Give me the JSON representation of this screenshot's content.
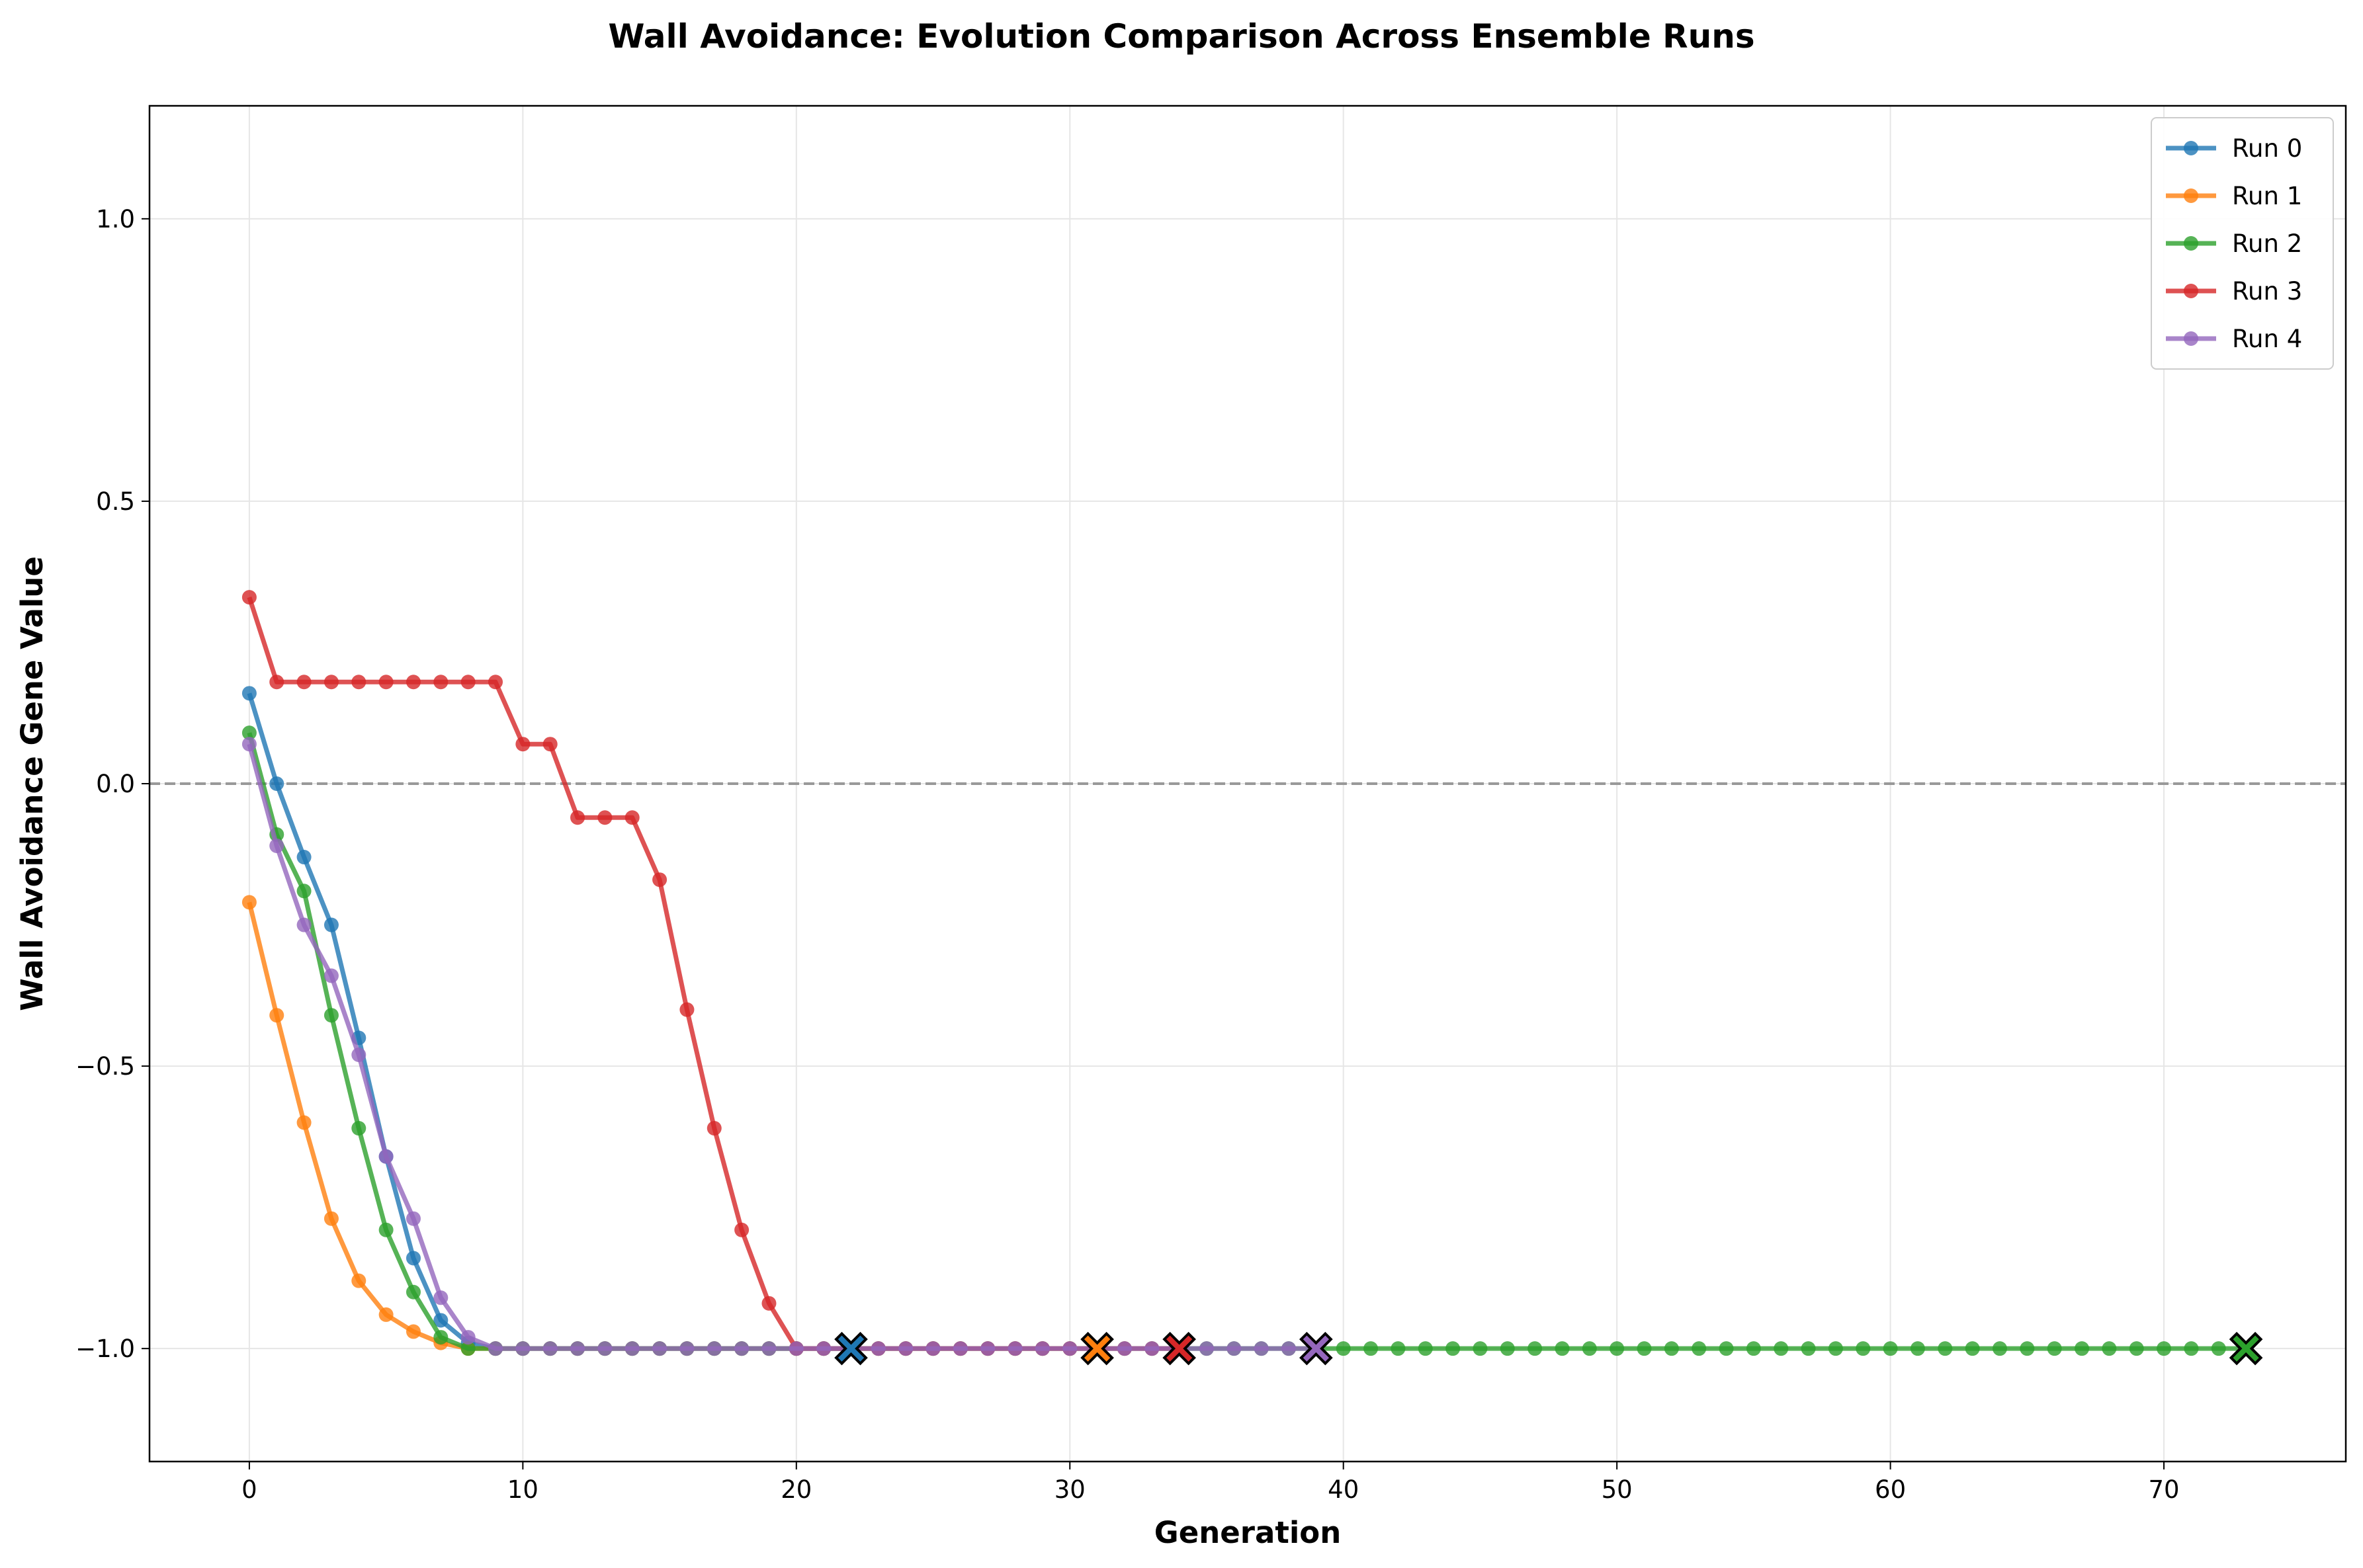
{
  "chart_data": {
    "type": "line",
    "title": "Wall Avoidance: Evolution Comparison Across Ensemble Runs",
    "xlabel": "Generation",
    "ylabel": "Wall Avoidance Gene Value",
    "xlim": [
      -3.65,
      76.65
    ],
    "ylim": [
      -1.2,
      1.2
    ],
    "x_ticks": [
      0,
      10,
      20,
      30,
      40,
      50,
      60,
      70
    ],
    "y_ticks": [
      1.0,
      0.5,
      0.0,
      -0.5,
      -1.0
    ],
    "x_tick_labels": [
      "0",
      "10",
      "20",
      "30",
      "40",
      "50",
      "60",
      "70"
    ],
    "y_tick_labels": [
      "1.0",
      "0.5",
      "0.0",
      "−0.5",
      "−1.0"
    ],
    "grid": true,
    "reference_line": {
      "y": 0.0,
      "style": "dashed",
      "color": "#999999"
    },
    "legend_position": "top-right",
    "series": [
      {
        "name": "Run 0",
        "color": "#1f77b4",
        "start_x": 0,
        "values": [
          0.16,
          0.0,
          -0.13,
          -0.25,
          -0.45,
          -0.66,
          -0.84,
          -0.95,
          -0.99,
          -1.0,
          -1.0,
          -1.0,
          -1.0,
          -1.0,
          -1.0,
          -1.0,
          -1.0,
          -1.0,
          -1.0,
          -1.0,
          -1.0,
          -1.0,
          -1.0
        ],
        "end_marker": {
          "x": 22,
          "y": -1.0
        }
      },
      {
        "name": "Run 1",
        "color": "#ff7f0e",
        "start_x": 0,
        "values": [
          -0.21,
          -0.41,
          -0.6,
          -0.77,
          -0.88,
          -0.94,
          -0.97,
          -0.99,
          -1.0,
          -1.0,
          -1.0,
          -1.0,
          -1.0,
          -1.0,
          -1.0,
          -1.0,
          -1.0,
          -1.0,
          -1.0,
          -1.0,
          -1.0,
          -1.0,
          -1.0,
          -1.0,
          -1.0,
          -1.0,
          -1.0,
          -1.0,
          -1.0,
          -1.0,
          -1.0,
          -1.0
        ],
        "end_marker": {
          "x": 31,
          "y": -1.0
        }
      },
      {
        "name": "Run 2",
        "color": "#2ca02c",
        "start_x": 0,
        "values": [
          0.09,
          -0.09,
          -0.19,
          -0.41,
          -0.61,
          -0.79,
          -0.9,
          -0.98,
          -1.0,
          -1.0,
          -1.0,
          -1.0,
          -1.0,
          -1.0,
          -1.0,
          -1.0,
          -1.0,
          -1.0,
          -1.0,
          -1.0,
          -1.0,
          -1.0,
          -1.0,
          -1.0,
          -1.0,
          -1.0,
          -1.0,
          -1.0,
          -1.0,
          -1.0,
          -1.0,
          -1.0,
          -1.0,
          -1.0,
          -1.0,
          -1.0,
          -1.0,
          -1.0,
          -1.0,
          -1.0,
          -1.0,
          -1.0,
          -1.0,
          -1.0,
          -1.0,
          -1.0,
          -1.0,
          -1.0,
          -1.0,
          -1.0,
          -1.0,
          -1.0,
          -1.0,
          -1.0,
          -1.0,
          -1.0,
          -1.0,
          -1.0,
          -1.0,
          -1.0,
          -1.0,
          -1.0,
          -1.0,
          -1.0,
          -1.0,
          -1.0,
          -1.0,
          -1.0,
          -1.0,
          -1.0,
          -1.0,
          -1.0,
          -1.0,
          -1.0
        ],
        "end_marker": {
          "x": 73,
          "y": -1.0
        }
      },
      {
        "name": "Run 3",
        "color": "#d62728",
        "start_x": 0,
        "values": [
          0.33,
          0.18,
          0.18,
          0.18,
          0.18,
          0.18,
          0.18,
          0.18,
          0.18,
          0.18,
          0.07,
          0.07,
          -0.06,
          -0.06,
          -0.06,
          -0.17,
          -0.4,
          -0.61,
          -0.79,
          -0.92,
          -1.0,
          -1.0,
          -1.0,
          -1.0,
          -1.0,
          -1.0,
          -1.0,
          -1.0,
          -1.0,
          -1.0,
          -1.0,
          -1.0,
          -1.0,
          -1.0,
          -1.0
        ],
        "end_marker": {
          "x": 34,
          "y": -1.0
        }
      },
      {
        "name": "Run 4",
        "color": "#9467bd",
        "start_x": 0,
        "values": [
          0.07,
          -0.11,
          -0.25,
          -0.34,
          -0.48,
          -0.66,
          -0.77,
          -0.91,
          -0.98,
          -1.0,
          -1.0,
          -1.0,
          -1.0,
          -1.0,
          -1.0,
          -1.0,
          -1.0,
          -1.0,
          -1.0,
          -1.0,
          -1.0,
          -1.0,
          -1.0,
          -1.0,
          -1.0,
          -1.0,
          -1.0,
          -1.0,
          -1.0,
          -1.0,
          -1.0,
          -1.0,
          -1.0,
          -1.0,
          -1.0,
          -1.0,
          -1.0,
          -1.0,
          -1.0,
          -1.0
        ],
        "end_marker": {
          "x": 39,
          "y": -1.0
        }
      }
    ]
  }
}
